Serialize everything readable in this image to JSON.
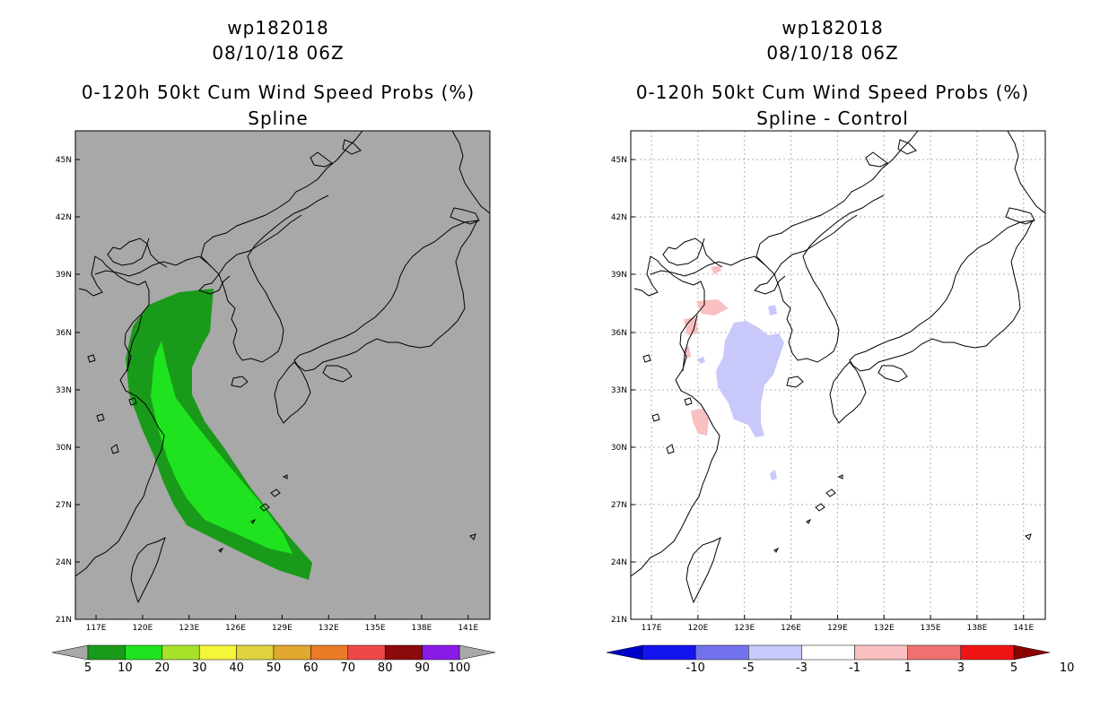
{
  "left_panel": {
    "title_line1": "wp182018",
    "title_line2": "08/10/18 06Z",
    "title_line3": "0-120h 50kt Cum Wind Speed Probs (%)",
    "title_line4": "Spline",
    "colorbar": {
      "labels": [
        "5",
        "10",
        "20",
        "30",
        "40",
        "50",
        "60",
        "70",
        "80",
        "90",
        "100"
      ],
      "colors": [
        "#1a9a1a",
        "#1ee31e",
        "#a6e22a",
        "#f5f53a",
        "#e0d23c",
        "#e0a82e",
        "#ea7b27",
        "#f04848",
        "#8b0a0a",
        "#8a1ae6"
      ]
    },
    "background_color": "#a8a8a8",
    "probability_fill": {
      "outer": "#1a9a1a",
      "inner": "#1ee31e"
    }
  },
  "right_panel": {
    "title_line1": "wp182018",
    "title_line2": "08/10/18 06Z",
    "title_line3": "0-120h 50kt Cum Wind Speed Probs (%)",
    "title_line4": "Spline - Control",
    "colorbar": {
      "labels": [
        "-10",
        "-5",
        "-3",
        "-1",
        "1",
        "3",
        "5",
        "10"
      ],
      "colors": [
        "#0000c8",
        "#1414f0",
        "#7272ee",
        "#c8c8fa",
        "#ffffff",
        "#f8c0c0",
        "#f07070",
        "#f01414",
        "#8b0000"
      ]
    },
    "background_color": "#ffffff",
    "diff_fill": {
      "negative": "#c8c8fa",
      "positive": "#f8c0c0"
    }
  },
  "map": {
    "lat_labels": [
      "45N",
      "42N",
      "39N",
      "36N",
      "33N",
      "30N",
      "27N",
      "24N",
      "21N"
    ],
    "lon_labels": [
      "117E",
      "120E",
      "123E",
      "126E",
      "129E",
      "132E",
      "135E",
      "138E",
      "141E"
    ]
  }
}
